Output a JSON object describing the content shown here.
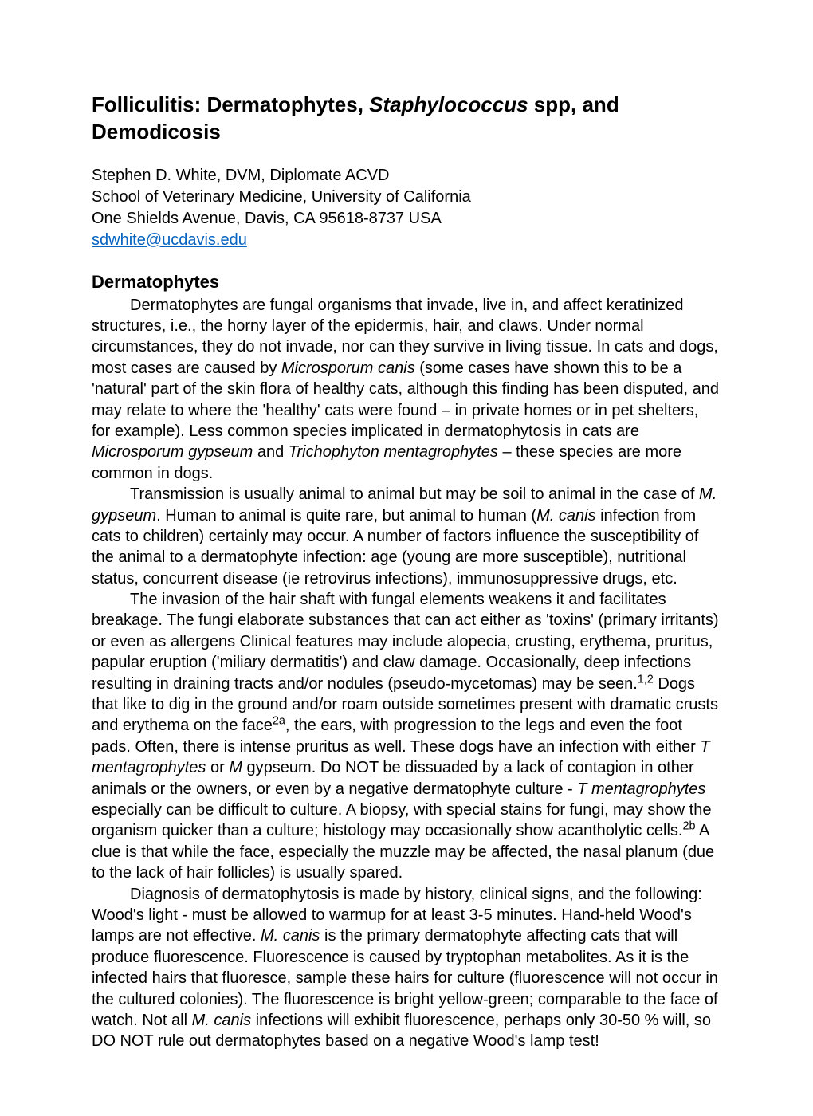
{
  "title_part1": "Folliculitis: Dermatophytes, ",
  "title_italic": "Staphylococcus",
  "title_part2": " spp, and Demodicosis",
  "author_line1": "Stephen D. White, DVM, Diplomate ACVD",
  "author_line2": "School of Veterinary Medicine, University of California",
  "author_line3": "One Shields Avenue, Davis, CA 95618-8737 USA",
  "author_email": "sdwhite@ucdavis.edu",
  "section_heading": "Dermatophytes",
  "p1_a": "Dermatophytes are fungal organisms that invade, live in, and affect keratinized structures, i.e.,  the horny layer of the epidermis, hair, and claws. Under normal circumstances, they do not invade, nor can they survive in living tissue. In cats and dogs, most cases are caused by ",
  "p1_i1": "Microsporum canis",
  "p1_b": " (some cases have shown this to be a 'natural' part of the skin flora of healthy cats, although this finding has been disputed, and may relate to where the 'healthy' cats were found – in private homes or in pet shelters, for example). Less common species implicated in dermatophytosis in cats are ",
  "p1_i2": "Microsporum gypseum",
  "p1_c": " and ",
  "p1_i3": "Trichophyton mentagrophytes",
  "p1_d": " – these species are more common in dogs.",
  "p2_a": "Transmission is usually animal to animal but may be soil to animal in the case of ",
  "p2_i1": "M. gypseum",
  "p2_b": ". Human to animal is quite rare, but animal to human (",
  "p2_i2": "M. canis",
  "p2_c": " infection from cats to children) certainly may occur.  A number of factors influence the susceptibility of the animal to a dermatophyte infection:  age (young are more susceptible), nutritional status, concurrent disease (ie retrovirus infections), immunosuppressive drugs, etc.",
  "p3_a": "The invasion of the hair shaft with fungal elements weakens it and facilitates breakage. The fungi elaborate substances that can act either as 'toxins' (primary irritants) or even as allergens Clinical features may include alopecia, crusting, erythema, pruritus, papular eruption ('miliary dermatitis') and claw damage. Occasionally, deep infections resulting in draining tracts and/or nodules (pseudo-mycetomas) may be seen.",
  "p3_sup1": "1,2",
  "p3_b": "  Dogs that like to dig in the ground and/or roam outside sometimes present with dramatic crusts and erythema on the face",
  "p3_sup2": "2a",
  "p3_c": ", the ears, with progression to the legs and even the foot pads. Often, there is intense pruritus as well. These dogs have an infection with either ",
  "p3_i1": "T mentagrophytes",
  "p3_d": " or ",
  "p3_i2": "M",
  "p3_e": "  gypseum. Do NOT be dissuaded by a lack of contagion in other animals or the owners, or even by a negative dermatophyte culture - ",
  "p3_i3": "T mentagrophytes",
  "p3_f": " especially can be difficult to culture. A biopsy, with special stains for fungi, may show the organism quicker than a culture; histology may occasionally show acantholytic cells.",
  "p3_sup3": "2b",
  "p3_g": " A clue is that while the face, especially the muzzle may be affected, the nasal planum (due to the lack of hair follicles) is usually spared.",
  "p4_a": "Diagnosis of dermatophytosis is made by history, clinical signs, and the following: Wood's light - must be allowed to warmup for at least 3-5 minutes. Hand-held Wood's lamps are not effective. ",
  "p4_i1": "M. canis",
  "p4_b": " is the primary dermatophyte affecting cats that will produce fluorescence. Fluorescence is caused by tryptophan metabolites. As it is the infected hairs that fluoresce, sample these hairs for culture (fluorescence will not occur in the cultured colonies). The fluorescence is bright yellow-green; comparable to the face of watch. Not all ",
  "p4_i2": "M. canis",
  "p4_c": " infections will exhibit fluorescence, perhaps only 30-50 % will, so DO NOT rule out dermatophytes based on a negative Wood's lamp test!"
}
